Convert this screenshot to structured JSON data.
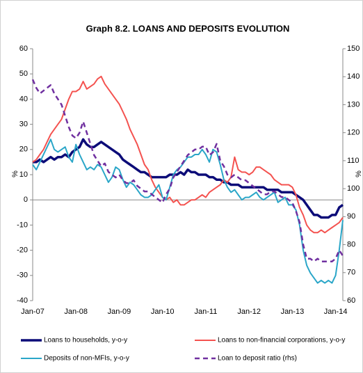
{
  "chart_data": {
    "type": "line",
    "title": "Graph 8.2. LOANS AND DEPOSITS EVOLUTION",
    "y_label": "%",
    "y2_label": "%",
    "categories": [
      "Jan-07",
      null,
      null,
      null,
      null,
      null,
      null,
      null,
      null,
      null,
      null,
      null,
      "Jan-08",
      null,
      null,
      null,
      null,
      null,
      null,
      null,
      null,
      null,
      null,
      null,
      "Jan-09",
      null,
      null,
      null,
      null,
      null,
      null,
      null,
      null,
      null,
      null,
      null,
      "Jan-10",
      null,
      null,
      null,
      null,
      null,
      null,
      null,
      null,
      null,
      null,
      null,
      "Jan-11",
      null,
      null,
      null,
      null,
      null,
      null,
      null,
      null,
      null,
      null,
      null,
      "Jan-12",
      null,
      null,
      null,
      null,
      null,
      null,
      null,
      null,
      null,
      null,
      null,
      "Jan-13",
      null,
      null,
      null,
      null,
      null,
      null,
      null,
      null,
      null,
      null,
      null,
      "Jan-14",
      null,
      null
    ],
    "ylim": [
      -40,
      60
    ],
    "yticks": [
      -40,
      -30,
      -20,
      -10,
      0,
      10,
      20,
      30,
      40,
      50,
      60
    ],
    "y2lim": [
      60,
      150
    ],
    "y2ticks": [
      60,
      70,
      80,
      90,
      100,
      110,
      120,
      130,
      140,
      150
    ],
    "grid": false,
    "series": [
      {
        "name": "Loans to households, y-o-y",
        "color": "#0c0c78",
        "width": 3.5,
        "dashed": false,
        "values": [
          15,
          15,
          16,
          15,
          16,
          17,
          16,
          17,
          17,
          18,
          17,
          19,
          20,
          21,
          24,
          22,
          21,
          21,
          22,
          23,
          22,
          21,
          20,
          19,
          18,
          16,
          15,
          14,
          13,
          12,
          11,
          11,
          10,
          9,
          9,
          9,
          9,
          9,
          10,
          10,
          10,
          11,
          10,
          12,
          11,
          11,
          10,
          10,
          10,
          9,
          9,
          8,
          8,
          7,
          7,
          6,
          6,
          6,
          5,
          5,
          5,
          5,
          5,
          5,
          5,
          4,
          4,
          4,
          4,
          3,
          3,
          3,
          3,
          2,
          1,
          0,
          -2,
          -4,
          -6,
          -6,
          -7,
          -7,
          -7,
          -6,
          -6,
          -3,
          -2
        ]
      },
      {
        "name": "Loans to non-financial corporations, y-o-y",
        "color": "#f4524f",
        "width": 2,
        "dashed": false,
        "values": [
          15,
          16,
          18,
          20,
          23,
          26,
          28,
          30,
          32,
          36,
          40,
          43,
          43,
          44,
          47,
          44,
          45,
          46,
          48,
          49,
          46,
          44,
          42,
          40,
          38,
          35,
          32,
          28,
          25,
          22,
          18,
          14,
          12,
          8,
          5,
          3,
          1,
          0,
          1,
          -1,
          0,
          -2,
          -2,
          -1,
          0,
          0,
          1,
          2,
          1,
          3,
          4,
          5,
          6,
          8,
          7,
          9,
          17,
          12,
          11,
          11,
          10,
          11,
          13,
          13,
          12,
          11,
          10,
          8,
          7,
          6,
          6,
          6,
          5,
          2,
          -3,
          -6,
          -10,
          -12,
          -13,
          -13,
          -12,
          -13,
          -12,
          -11,
          -10,
          -9,
          -7
        ]
      },
      {
        "name": "Deposits of non-MFIs, y-o-y",
        "color": "#2aa6c8",
        "width": 2,
        "dashed": false,
        "values": [
          14,
          12,
          15,
          18,
          21,
          24,
          20,
          19,
          20,
          21,
          17,
          15,
          22,
          18,
          15,
          12,
          13,
          12,
          14,
          13,
          10,
          7,
          9,
          13,
          12,
          8,
          5,
          7,
          6,
          4,
          2,
          1,
          1,
          2,
          4,
          6,
          1,
          0,
          5,
          10,
          12,
          13,
          15,
          17,
          17,
          18,
          18,
          20,
          18,
          15,
          20,
          19,
          14,
          8,
          5,
          3,
          4,
          2,
          0,
          1,
          1,
          2,
          3,
          1,
          0,
          1,
          2,
          3,
          -1,
          0,
          1,
          -2,
          -2,
          -4,
          -10,
          -20,
          -26,
          -29,
          -31,
          -33,
          -32,
          -33,
          -32,
          -33,
          -30,
          -20,
          -8
        ]
      },
      {
        "name": "Loan to deposit ratio (rhs)",
        "color": "#7030a0",
        "width": 2.5,
        "dashed": true,
        "axis": "y2",
        "values": [
          139,
          136,
          134,
          135,
          136,
          137,
          134,
          132,
          130,
          126,
          122,
          119,
          118,
          120,
          124,
          120,
          116,
          112,
          110,
          108,
          109,
          106,
          105,
          104,
          105,
          103,
          102,
          102,
          103,
          101,
          100,
          99,
          99,
          98,
          97,
          96,
          95,
          98,
          100,
          104,
          106,
          108,
          110,
          112,
          113,
          114,
          114,
          115,
          115,
          112,
          113,
          116,
          110,
          108,
          105,
          104,
          105,
          104,
          103,
          103,
          102,
          101,
          100,
          99,
          98,
          98,
          99,
          99,
          98,
          97,
          97,
          96,
          95,
          92,
          88,
          80,
          75,
          75,
          74,
          75,
          74,
          74,
          74,
          74,
          75,
          78,
          76
        ]
      }
    ]
  }
}
